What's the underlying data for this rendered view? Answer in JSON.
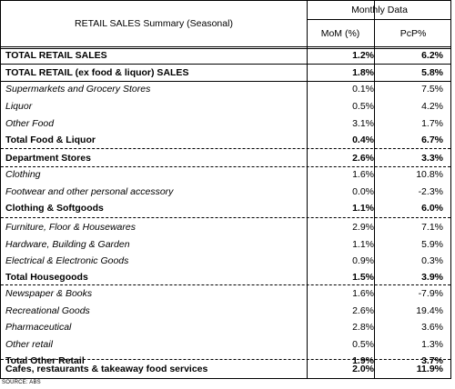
{
  "header": {
    "title": "RETAIL SALES Summary (Seasonal)",
    "group": "Monthly Data",
    "col_mom": "MoM (%)",
    "col_pcp": "PcP%"
  },
  "rows": [
    {
      "label": "TOTAL RETAIL SALES",
      "mom": "1.2%",
      "pcp": "6.2%",
      "style": "bold"
    },
    {
      "label": "TOTAL RETAIL (ex food & liquor) SALES",
      "mom": "1.8%",
      "pcp": "5.8%",
      "style": "bold"
    },
    {
      "label": "Supermarkets and Grocery Stores",
      "mom": "0.1%",
      "pcp": "7.5%",
      "style": "italic"
    },
    {
      "label": "Liquor",
      "mom": "0.5%",
      "pcp": "4.2%",
      "style": "italic"
    },
    {
      "label": "Other Food",
      "mom": "3.1%",
      "pcp": "1.7%",
      "style": "italic"
    },
    {
      "label": "Total Food & Liquor",
      "mom": "0.4%",
      "pcp": "6.7%",
      "style": "bold"
    },
    {
      "label": "Department Stores",
      "mom": "2.6%",
      "pcp": "3.3%",
      "style": "bold"
    },
    {
      "label": "Clothing",
      "mom": "1.6%",
      "pcp": "10.8%",
      "style": "italic"
    },
    {
      "label": "Footwear and other personal accessory",
      "mom": "0.0%",
      "pcp": "-2.3%",
      "style": "italic"
    },
    {
      "label": "Clothing & Softgoods",
      "mom": "1.1%",
      "pcp": "6.0%",
      "style": "bold"
    },
    {
      "label": "Furniture, Floor & Housewares",
      "mom": "2.9%",
      "pcp": "7.1%",
      "style": "italic"
    },
    {
      "label": "Hardware, Building & Garden",
      "mom": "1.1%",
      "pcp": "5.9%",
      "style": "italic"
    },
    {
      "label": "Electrical & Electronic Goods",
      "mom": "0.9%",
      "pcp": "0.3%",
      "style": "italic"
    },
    {
      "label": "Total Housegoods",
      "mom": "1.5%",
      "pcp": "3.9%",
      "style": "bold"
    },
    {
      "label": "Newspaper & Books",
      "mom": "1.6%",
      "pcp": "-7.9%",
      "style": "italic"
    },
    {
      "label": "Recreational Goods",
      "mom": "2.6%",
      "pcp": "19.4%",
      "style": "italic"
    },
    {
      "label": "Pharmaceutical",
      "mom": "2.8%",
      "pcp": "3.6%",
      "style": "italic"
    },
    {
      "label": "Other retail",
      "mom": "0.5%",
      "pcp": "1.3%",
      "style": "italic"
    },
    {
      "label": "Total Other Retail",
      "mom": "1.9%",
      "pcp": "3.7%",
      "style": "bold"
    },
    {
      "label": "Cafes, restaurants & takeaway food services",
      "mom": "2.0%",
      "pcp": "11.9%",
      "style": "bold"
    }
  ],
  "source": "SOURCE: ABS"
}
